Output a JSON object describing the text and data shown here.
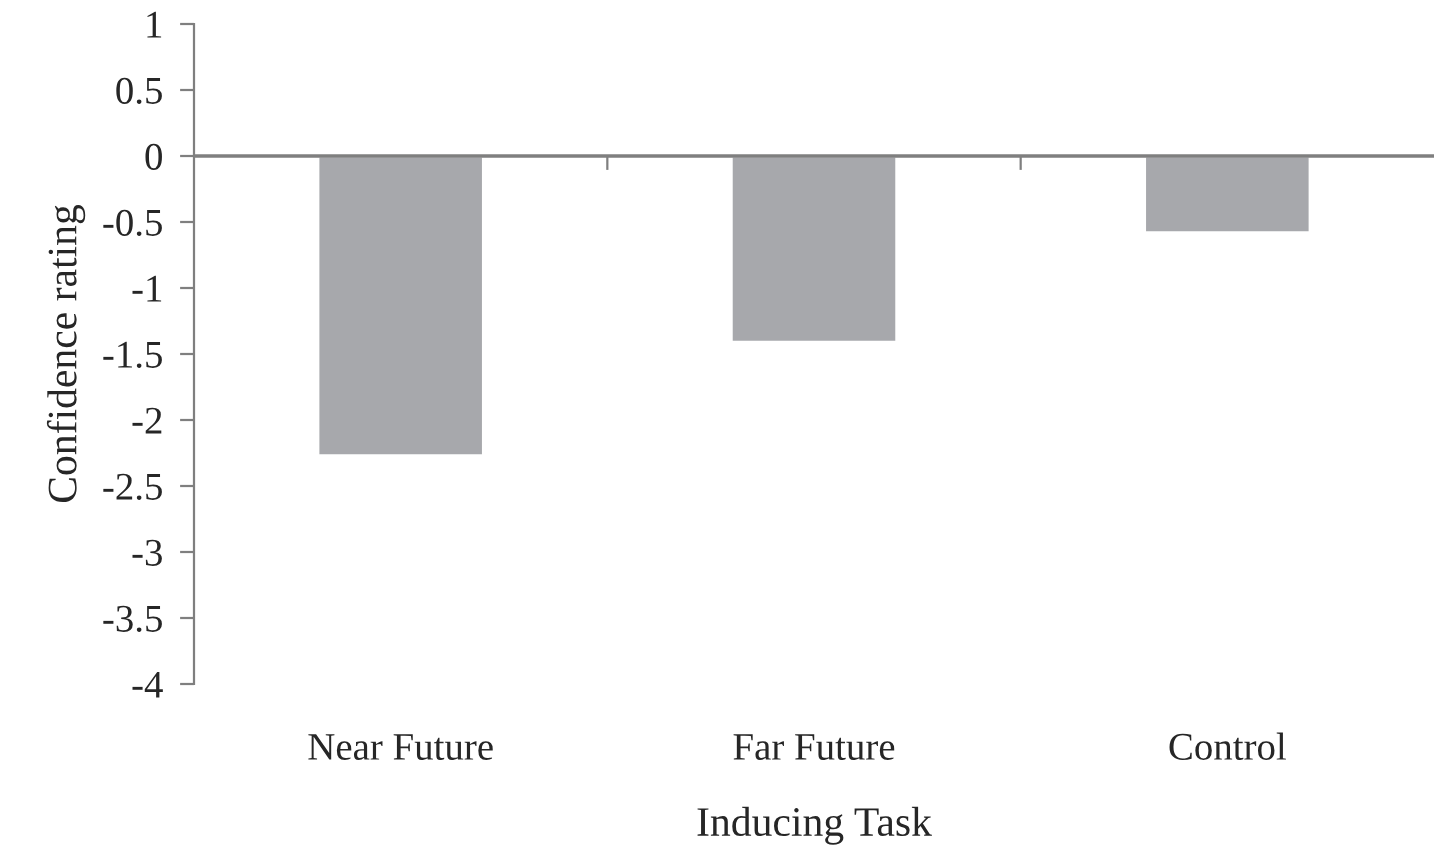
{
  "chart_data": {
    "type": "bar",
    "xlabel": "Inducing Task",
    "ylabel": "Confidence rating",
    "categories": [
      "Near Future",
      "Far Future",
      "Control"
    ],
    "values": [
      -2.27,
      -1.41,
      -0.58
    ],
    "color": "#a7a8ac",
    "ylim": [
      -4,
      1
    ],
    "yticks": [
      1,
      0.5,
      0,
      -0.5,
      -1,
      -1.5,
      -2,
      -2.5,
      -3,
      -3.5,
      -4
    ],
    "grid": false,
    "legend": false,
    "ref_lines": [
      {
        "axis": "y",
        "value": 0,
        "color": "#7f7f7f"
      }
    ]
  }
}
